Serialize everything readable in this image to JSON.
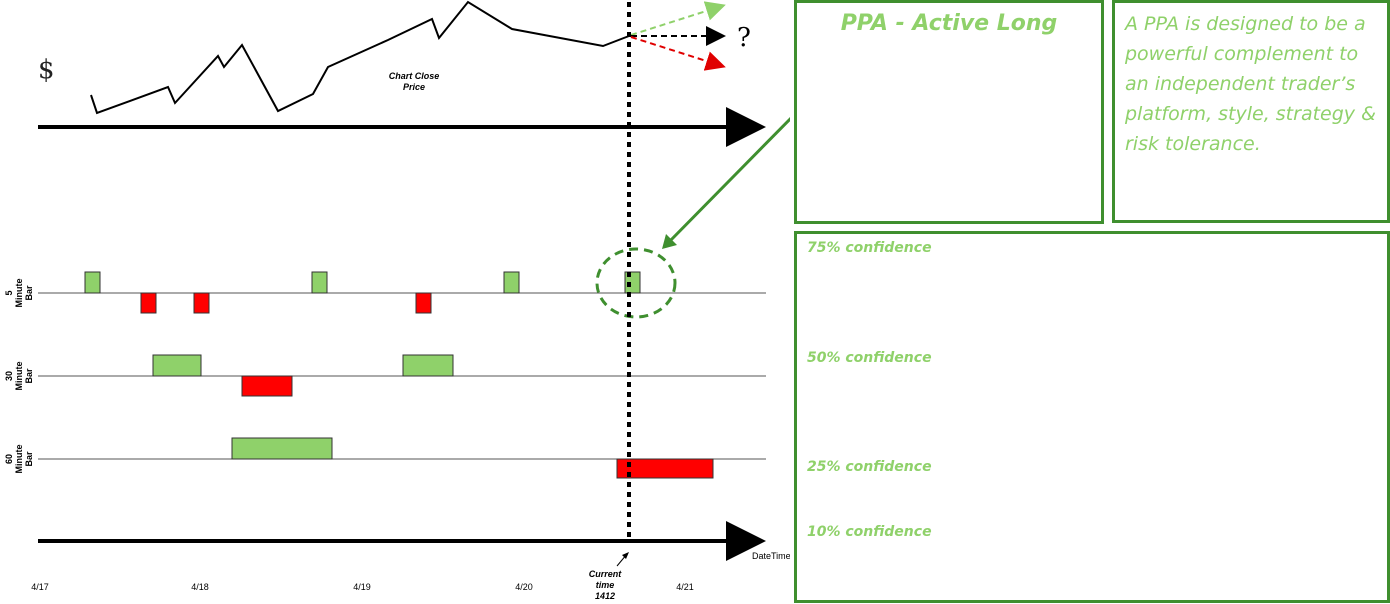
{
  "top_chart": {
    "dollar_label": "$",
    "price_label_line1": "Chart Close",
    "price_label_line2": "Price",
    "question_mark": "?"
  },
  "rows": [
    {
      "label_line1": "5",
      "label_line2": "Minute",
      "label_line3": "Bar"
    },
    {
      "label_line1": "30",
      "label_line2": "Minute",
      "label_line3": "Bar"
    },
    {
      "label_line1": "60",
      "label_line2": "Minute",
      "label_line3": "Bar"
    }
  ],
  "x_axis": {
    "axis_label": "DateTime",
    "ticks": [
      "4/17",
      "4/18",
      "4/19",
      "4/20",
      "4/21"
    ],
    "current_line1": "Current",
    "current_line2": "time",
    "current_line3": "1412"
  },
  "panel": {
    "title": "PPA - Active Long",
    "description": "A PPA is designed  to be a powerful complement to an independent  trader’s platform, style, strategy & risk tolerance.",
    "confidence_levels": [
      "75% confidence",
      "50% confidence",
      "25% confidence",
      "10% confidence"
    ]
  },
  "colors": {
    "bull": "#8fd16a",
    "bear": "#ff0000",
    "border": "#3f8f2f",
    "text_green": "#8fd16a"
  }
}
